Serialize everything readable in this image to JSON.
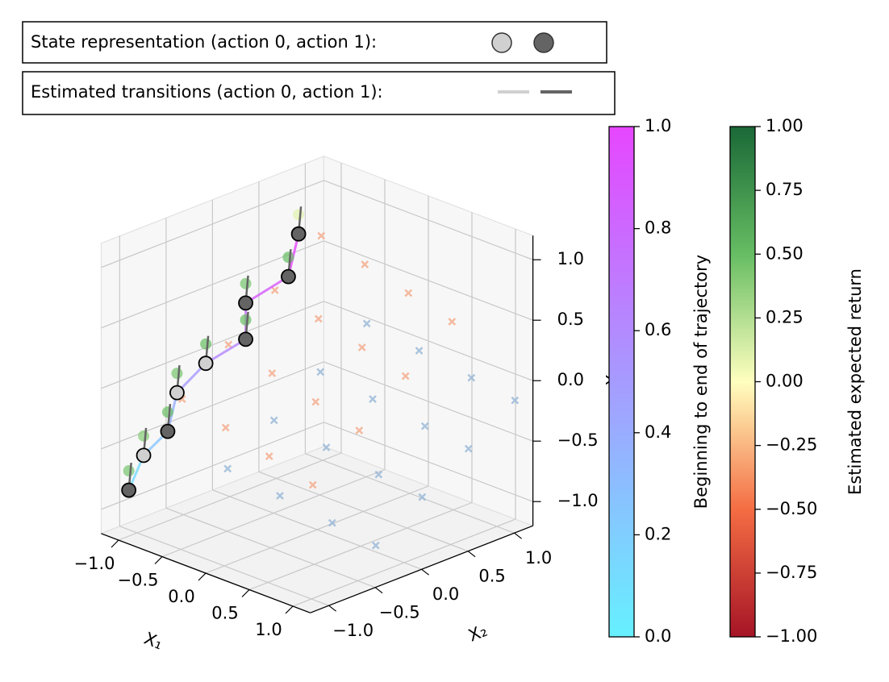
{
  "chart_data": {
    "type": "scatter3d",
    "legend": {
      "state_label": "State representation (action 0, action 1):",
      "transition_label": "Estimated transitions (action 0, action 1):",
      "action_colors": [
        "#d0d0d0",
        "#646464"
      ]
    },
    "xlabel": "X₁",
    "ylabel": "X₂",
    "zlabel": "X₃",
    "xlim": [
      -1.2,
      1.2
    ],
    "ylim": [
      -1.2,
      1.2
    ],
    "zlim": [
      -1.2,
      1.2
    ],
    "xticks": [
      {
        "value": -1,
        "label": "−1.0"
      },
      {
        "value": -0.5,
        "label": "−0.5"
      },
      {
        "value": 0,
        "label": "0.0"
      },
      0.5,
      {
        "value": 1,
        "label": "1.0"
      }
    ],
    "yticks": [
      {
        "value": -1,
        "label": "−1.0"
      },
      {
        "value": -0.5,
        "label": "−0.5"
      },
      {
        "value": 0,
        "label": "0.0"
      },
      0.5,
      {
        "value": 1,
        "label": "1.0"
      }
    ],
    "zticks": [
      {
        "value": -1,
        "label": "−1.0"
      },
      {
        "value": -0.5,
        "label": "−0.5"
      },
      {
        "value": 0,
        "label": "0.0"
      },
      0.5,
      {
        "value": 1,
        "label": "1.0"
      }
    ],
    "grid": true,
    "series": [
      {
        "color": "#f4a582",
        "x": [
          -0.75,
          -0.75,
          -0.75,
          -0.75,
          -0.25,
          -0.25,
          -0.25,
          -0.25,
          0.25,
          0.25,
          0.25,
          0.25,
          0.75,
          0.75,
          0.75,
          0.75
        ],
        "y": [
          -0.75,
          -0.25,
          0.25,
          0.75,
          -0.75,
          -0.25,
          0.25,
          0.75,
          -0.75,
          -0.25,
          0.25,
          0.75,
          -0.75,
          -0.25,
          0.25,
          0.75
        ],
        "z": [
          -0.1,
          0.2,
          0.5,
          0.8,
          -0.2,
          0.1,
          0.4,
          0.7,
          -0.3,
          0,
          0.3,
          0.6,
          -0.4,
          -0.1,
          0.2,
          0.5
        ]
      },
      {
        "color": "#92b4d6",
        "x": [
          -0.6,
          -0.6,
          -0.6,
          -0.6,
          0,
          0,
          0,
          0,
          0.6,
          0.6,
          0.6,
          0.6,
          1.1,
          1.1,
          1.1,
          1.1
        ],
        "y": [
          -0.4,
          0.1,
          0.6,
          1.1,
          -0.4,
          0.1,
          0.6,
          1.1,
          -0.4,
          0.1,
          0.6,
          1.1,
          -0.4,
          0.1,
          0.6,
          1.1
        ],
        "z": [
          -0.74,
          -0.49,
          -0.24,
          0.01,
          -0.8,
          -0.55,
          -0.3,
          -0.05,
          -0.86,
          -0.61,
          -0.36,
          -0.11,
          -0.91,
          -0.66,
          -0.41,
          -0.16
        ]
      }
    ],
    "trajectory": {
      "x": [
        -1,
        -1,
        -1,
        -1,
        -1,
        -1,
        -1,
        -1,
        -1
      ],
      "y": [
        -1.09,
        -0.93,
        -0.67,
        -0.57,
        -0.26,
        0.17,
        0.17,
        0.63,
        0.74
      ],
      "z": [
        -0.82,
        -0.58,
        -0.46,
        -0.17,
        -0.02,
        0.05,
        0.35,
        0.43,
        0.75
      ],
      "progress": [
        0,
        0.125,
        0.25,
        0.375,
        0.5,
        0.625,
        0.75,
        0.875,
        1
      ],
      "action": [
        1,
        0,
        1,
        0,
        0,
        1,
        1,
        1,
        1
      ],
      "returns": [
        0.45,
        0.4,
        0.5,
        0.45,
        0.5,
        0.5,
        0.45,
        0.5,
        0.1
      ]
    },
    "colorbars": [
      {
        "label": "Beginning to end of trajectory",
        "lim": [
          0,
          1
        ],
        "ticks": [
          {
            "value": 0,
            "label": "0.0"
          },
          0.2,
          0.4,
          0.6,
          0.8,
          {
            "value": 1,
            "label": "1.0"
          }
        ]
      },
      {
        "label": "Estimated expected return",
        "lim": [
          -1,
          1
        ],
        "ticks": [
          {
            "value": -1,
            "label": "−1.00"
          },
          {
            "value": -0.75,
            "label": "−0.75"
          },
          {
            "value": -0.5,
            "label": "−0.50"
          },
          {
            "value": -0.25,
            "label": "−0.25"
          },
          {
            "value": 0,
            "label": "0.00"
          },
          0.25,
          {
            "value": 0.5,
            "label": "0.50"
          },
          0.75,
          {
            "value": 1,
            "label": "1.00"
          }
        ]
      }
    ]
  }
}
